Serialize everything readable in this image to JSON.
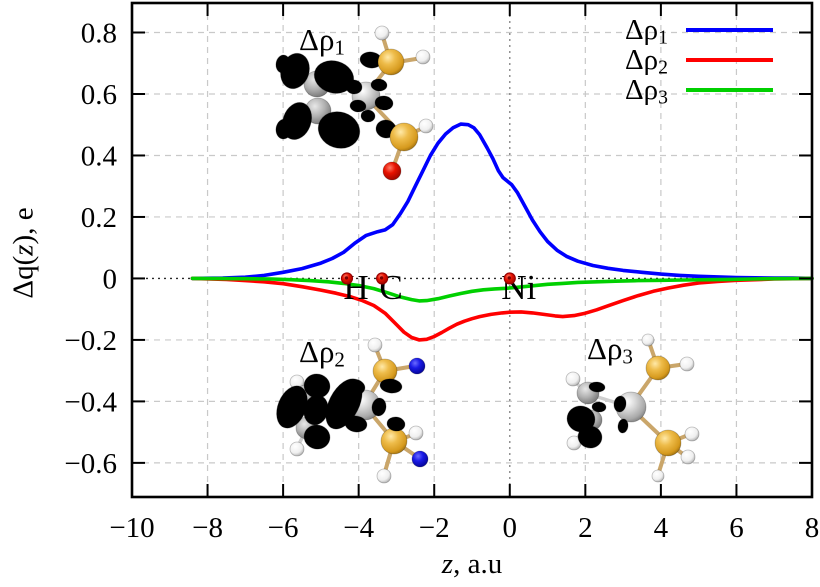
{
  "figure": {
    "xlabel": {
      "var": "z",
      "rest": ", a.u",
      "full": "z, a.u"
    },
    "ylabel": {
      "parts": [
        "Δq(",
        "z",
        "), e"
      ],
      "full": "Δq(z), e"
    }
  },
  "legend": {
    "position": "top-right",
    "entries": [
      {
        "prefix": "Δρ",
        "sub": "1",
        "label": "Δρ1",
        "color": "#0000ff"
      },
      {
        "prefix": "Δρ",
        "sub": "2",
        "label": "Δρ2",
        "color": "#ff0000"
      },
      {
        "prefix": "Δρ",
        "sub": "3",
        "label": "Δρ3",
        "color": "#00d000"
      }
    ]
  },
  "insets": [
    {
      "name": "molecule-isosurface-rho1",
      "prefix": "Δρ",
      "sub": "1",
      "label": "Δρ1"
    },
    {
      "name": "molecule-isosurface-rho2",
      "prefix": "Δρ",
      "sub": "2",
      "label": "Δρ2"
    },
    {
      "name": "molecule-isosurface-rho3",
      "prefix": "Δρ",
      "sub": "3",
      "label": "Δρ3"
    }
  ],
  "colors": {
    "grid": "#c9c9c9",
    "zero_line_horizontal": "#2a2a2a",
    "zero_line_vertical": "#8a8a8a",
    "axis": "#000000",
    "atom_dot": "#ee1100"
  },
  "chart_data": {
    "type": "line",
    "title": "",
    "xlabel": "z, a.u",
    "ylabel": "Δq(z), e",
    "xlim": [
      -10,
      8
    ],
    "ylim": [
      -0.711,
      0.896
    ],
    "x_ticks": [
      -10,
      -8,
      -6,
      -4,
      -2,
      0,
      2,
      4,
      6,
      8
    ],
    "x_tick_labels": [
      "−10",
      "−8",
      "−6",
      "−4",
      "−2",
      "0",
      "2",
      "4",
      "6",
      "8"
    ],
    "y_ticks": [
      -0.6,
      -0.4,
      -0.2,
      0,
      0.2,
      0.4,
      0.6,
      0.8
    ],
    "y_tick_labels": [
      "−0.6",
      "−0.4",
      "−0.2",
      "0",
      "0.2",
      "0.4",
      "0.6",
      "0.8"
    ],
    "grid": true,
    "zero_axes": true,
    "legend_position": "top-right",
    "series": [
      {
        "name": "Δρ1",
        "color": "#0000ff",
        "points": [
          [
            -8.4,
            0
          ],
          [
            -7.6,
            0.001
          ],
          [
            -7,
            0.004
          ],
          [
            -6.5,
            0.01
          ],
          [
            -6,
            0.02
          ],
          [
            -5.5,
            0.032
          ],
          [
            -5,
            0.05
          ],
          [
            -4.7,
            0.065
          ],
          [
            -4.4,
            0.085
          ],
          [
            -4.1,
            0.115
          ],
          [
            -3.8,
            0.14
          ],
          [
            -3.5,
            0.152
          ],
          [
            -3.3,
            0.158
          ],
          [
            -3.1,
            0.175
          ],
          [
            -2.9,
            0.21
          ],
          [
            -2.7,
            0.25
          ],
          [
            -2.5,
            0.3
          ],
          [
            -2.3,
            0.35
          ],
          [
            -2.1,
            0.4
          ],
          [
            -1.9,
            0.44
          ],
          [
            -1.7,
            0.47
          ],
          [
            -1.5,
            0.49
          ],
          [
            -1.3,
            0.502
          ],
          [
            -1.1,
            0.5
          ],
          [
            -0.95,
            0.49
          ],
          [
            -0.8,
            0.468
          ],
          [
            -0.6,
            0.425
          ],
          [
            -0.45,
            0.39
          ],
          [
            -0.3,
            0.35
          ],
          [
            -0.18,
            0.328
          ],
          [
            -0.05,
            0.315
          ],
          [
            0.05,
            0.305
          ],
          [
            0.2,
            0.28
          ],
          [
            0.4,
            0.235
          ],
          [
            0.6,
            0.19
          ],
          [
            0.8,
            0.152
          ],
          [
            1,
            0.12
          ],
          [
            1.25,
            0.092
          ],
          [
            1.5,
            0.072
          ],
          [
            1.8,
            0.056
          ],
          [
            2.2,
            0.042
          ],
          [
            2.6,
            0.033
          ],
          [
            3,
            0.026
          ],
          [
            3.5,
            0.02
          ],
          [
            4,
            0.014
          ],
          [
            4.5,
            0.01
          ],
          [
            5,
            0.007
          ],
          [
            5.5,
            0.005
          ],
          [
            6,
            0.003
          ],
          [
            6.5,
            0.002
          ],
          [
            7,
            0.001
          ],
          [
            7.5,
            0.001
          ],
          [
            8,
            0
          ]
        ]
      },
      {
        "name": "Δρ2",
        "color": "#ff0000",
        "points": [
          [
            -8.4,
            0
          ],
          [
            -7.5,
            -0.003
          ],
          [
            -7,
            -0.007
          ],
          [
            -6.5,
            -0.011
          ],
          [
            -6,
            -0.017
          ],
          [
            -5.5,
            -0.027
          ],
          [
            -5,
            -0.038
          ],
          [
            -4.6,
            -0.048
          ],
          [
            -4.2,
            -0.06
          ],
          [
            -3.9,
            -0.072
          ],
          [
            -3.6,
            -0.088
          ],
          [
            -3.3,
            -0.113
          ],
          [
            -3,
            -0.15
          ],
          [
            -2.8,
            -0.175
          ],
          [
            -2.6,
            -0.192
          ],
          [
            -2.4,
            -0.2
          ],
          [
            -2.2,
            -0.198
          ],
          [
            -2,
            -0.189
          ],
          [
            -1.8,
            -0.176
          ],
          [
            -1.6,
            -0.162
          ],
          [
            -1.4,
            -0.149
          ],
          [
            -1.2,
            -0.139
          ],
          [
            -1,
            -0.131
          ],
          [
            -0.8,
            -0.124
          ],
          [
            -0.5,
            -0.117
          ],
          [
            -0.2,
            -0.112
          ],
          [
            0,
            -0.11
          ],
          [
            0.3,
            -0.109
          ],
          [
            0.6,
            -0.112
          ],
          [
            0.9,
            -0.117
          ],
          [
            1.2,
            -0.122
          ],
          [
            1.4,
            -0.124
          ],
          [
            1.7,
            -0.121
          ],
          [
            2,
            -0.113
          ],
          [
            2.3,
            -0.102
          ],
          [
            2.6,
            -0.089
          ],
          [
            3,
            -0.072
          ],
          [
            3.4,
            -0.056
          ],
          [
            3.8,
            -0.042
          ],
          [
            4.2,
            -0.031
          ],
          [
            4.6,
            -0.022
          ],
          [
            5,
            -0.015
          ],
          [
            5.5,
            -0.01
          ],
          [
            6,
            -0.006
          ],
          [
            6.5,
            -0.004
          ],
          [
            7,
            -0.002
          ],
          [
            7.5,
            -0.001
          ],
          [
            8,
            0
          ]
        ]
      },
      {
        "name": "Δρ3",
        "color": "#00d000",
        "points": [
          [
            -8.4,
            0
          ],
          [
            -7,
            -0.001
          ],
          [
            -6.3,
            -0.002
          ],
          [
            -5.8,
            -0.004
          ],
          [
            -5.3,
            -0.007
          ],
          [
            -4.8,
            -0.011
          ],
          [
            -4.4,
            -0.016
          ],
          [
            -4,
            -0.023
          ],
          [
            -3.6,
            -0.033
          ],
          [
            -3.2,
            -0.048
          ],
          [
            -2.9,
            -0.06
          ],
          [
            -2.6,
            -0.069
          ],
          [
            -2.4,
            -0.073
          ],
          [
            -2.2,
            -0.072
          ],
          [
            -1.9,
            -0.066
          ],
          [
            -1.6,
            -0.057
          ],
          [
            -1.3,
            -0.049
          ],
          [
            -1,
            -0.042
          ],
          [
            -0.7,
            -0.037
          ],
          [
            -0.4,
            -0.034
          ],
          [
            -0.1,
            -0.032
          ],
          [
            0.2,
            -0.029
          ],
          [
            0.6,
            -0.024
          ],
          [
            1,
            -0.019
          ],
          [
            1.4,
            -0.016
          ],
          [
            1.8,
            -0.013
          ],
          [
            2.3,
            -0.011
          ],
          [
            2.8,
            -0.009
          ],
          [
            3.4,
            -0.007
          ],
          [
            4,
            -0.006
          ],
          [
            4.6,
            -0.005
          ],
          [
            5.2,
            -0.004
          ],
          [
            5.8,
            -0.003
          ],
          [
            6.4,
            -0.002
          ],
          [
            7,
            -0.001
          ],
          [
            8,
            0
          ]
        ]
      }
    ],
    "atom_markers": [
      {
        "label": "H",
        "z": -4.31,
        "value": 0
      },
      {
        "label": "C",
        "z": -3.38,
        "value": 0
      },
      {
        "label": "Ni",
        "z": 0,
        "value": 0
      }
    ]
  }
}
